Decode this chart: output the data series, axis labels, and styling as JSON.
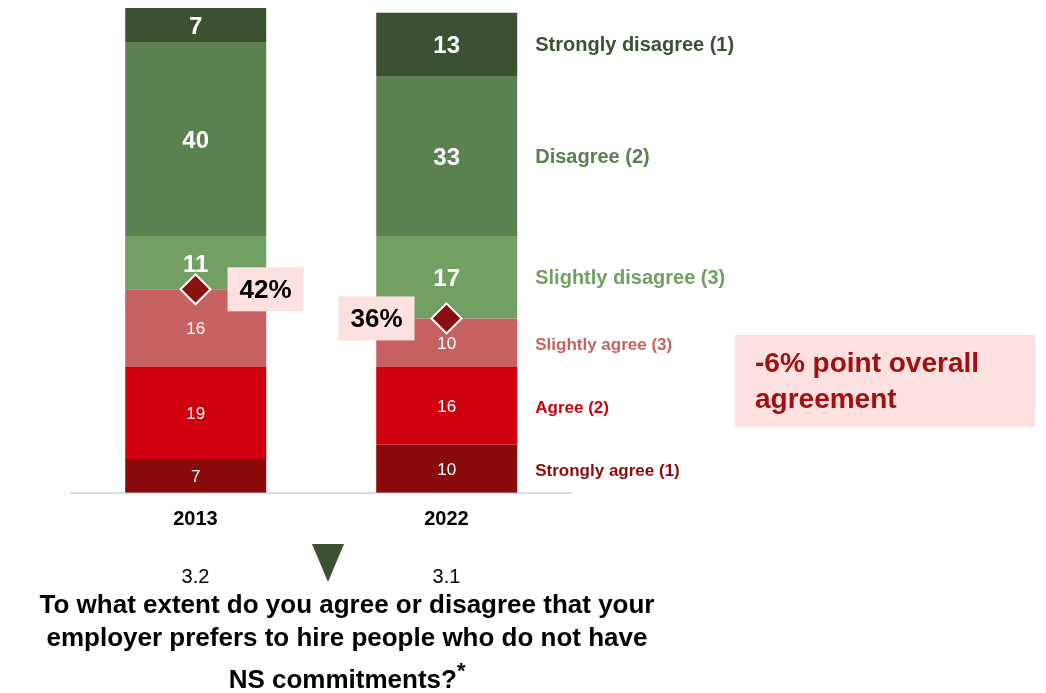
{
  "chart_data": {
    "type": "bar",
    "stacked": true,
    "data_labels": true,
    "tick_labels": "x",
    "categories": [
      "2013",
      "2022"
    ],
    "series": [
      {
        "name": "Strongly agree (1)",
        "color": "#8b0a0a",
        "values": [
          7,
          10
        ]
      },
      {
        "name": "Agree (2)",
        "color": "#d0000f",
        "values": [
          19,
          16
        ]
      },
      {
        "name": "Slightly agree (3)",
        "color": "#c86262",
        "values": [
          16,
          10
        ]
      },
      {
        "name": "Slightly disagree (3)",
        "color": "#72a062",
        "values": [
          11,
          17
        ]
      },
      {
        "name": "Disagree (2)",
        "color": "#5b8150",
        "values": [
          40,
          33
        ]
      },
      {
        "name": "Strongly disagree (1)",
        "color": "#3a5232",
        "values": [
          7,
          13
        ]
      },
      {
        "type": "scatter",
        "marker": "diamond",
        "color": "#8b1010",
        "values": [
          42,
          36
        ],
        "value_labels": [
          "42%",
          "36%"
        ]
      }
    ],
    "xlabel": "To what extent do you agree or disagree that your employer prefers to hire people who do not have NS commitments?$^{*}$",
    "annotations": [
      "3.2",
      "3.1",
      "-6% point overall agreement"
    ]
  }
}
